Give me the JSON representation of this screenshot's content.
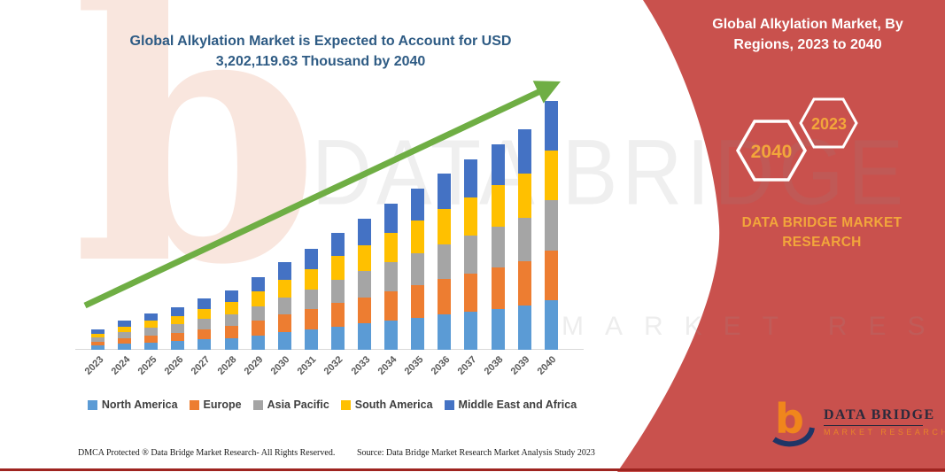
{
  "title": "Global Alkylation Market is Expected to Account for USD 3,202,119.63 Thousand by 2040",
  "side_panel": {
    "title": "Global Alkylation Market, By Regions, 2023 to 2040",
    "hexagon_left": "2040",
    "hexagon_right": "2023",
    "brand_text": "DATA BRIDGE MARKET RESEARCH",
    "background_color": "#C9514D",
    "accent_text_color": "#F2A63B"
  },
  "watermarks": {
    "big_b": "b",
    "brand": "DATA BRIDGE",
    "sub": "MARKET RESEARCH"
  },
  "logo": {
    "name": "DATA BRIDGE",
    "subtitle": "MARKET RESEARCH"
  },
  "footer": {
    "left": "DMCA Protected ® Data Bridge Market Research-  All Rights Reserved.",
    "source": "Source: Data Bridge Market Research  Market Analysis Study 2023"
  },
  "chart_data": {
    "type": "bar",
    "stacked": true,
    "title": "Global Alkylation Market is Expected to Account for USD 3,202,119.63 Thousand by 2040",
    "unit": "USD Thousand",
    "categories": [
      "2023",
      "2024",
      "2025",
      "2026",
      "2027",
      "2028",
      "2029",
      "2030",
      "2031",
      "2032",
      "2033",
      "2034",
      "2035",
      "2036",
      "2037",
      "2038",
      "2039",
      "2040"
    ],
    "totals": [
      262000,
      376000,
      467000,
      547000,
      661000,
      763000,
      934000,
      1128000,
      1299000,
      1504000,
      1686000,
      1880000,
      2074000,
      2268000,
      2450000,
      2644000,
      2837000,
      3202119.63
    ],
    "series": [
      {
        "name": "North America",
        "color": "#5B9BD5",
        "values": [
          52400,
          75200,
          93400,
          109400,
          132200,
          152600,
          186800,
          225600,
          259800,
          300800,
          337200,
          376000,
          414800,
          453600,
          490000,
          528800,
          567400,
          640423.93
        ]
      },
      {
        "name": "Europe",
        "color": "#ED7D31",
        "values": [
          52400,
          75200,
          93400,
          109400,
          132200,
          152600,
          186800,
          225600,
          259800,
          300800,
          337200,
          376000,
          414800,
          453600,
          490000,
          528800,
          567400,
          640423.93
        ]
      },
      {
        "name": "Asia Pacific",
        "color": "#A5A5A5",
        "values": [
          52400,
          75200,
          93400,
          109400,
          132200,
          152600,
          186800,
          225600,
          259800,
          300800,
          337200,
          376000,
          414800,
          453600,
          490000,
          528800,
          567400,
          640423.93
        ]
      },
      {
        "name": "South America",
        "color": "#FFC000",
        "values": [
          52400,
          75200,
          93400,
          109400,
          132200,
          152600,
          186800,
          225600,
          259800,
          300800,
          337200,
          376000,
          414800,
          453600,
          490000,
          528800,
          567400,
          640423.93
        ]
      },
      {
        "name": "Middle East and Africa",
        "color": "#4472C4",
        "values": [
          52400,
          75200,
          93400,
          109400,
          132200,
          152600,
          186800,
          225600,
          259800,
          300800,
          337200,
          376000,
          414800,
          453600,
          490000,
          528800,
          567400,
          640423.93
        ]
      }
    ],
    "ylim": [
      0,
      3202119.63
    ],
    "grid": false,
    "legend_position": "bottom",
    "trend_arrow": true,
    "trend_color": "#6FAE44",
    "axis_line_color": "#D9D9D9"
  }
}
